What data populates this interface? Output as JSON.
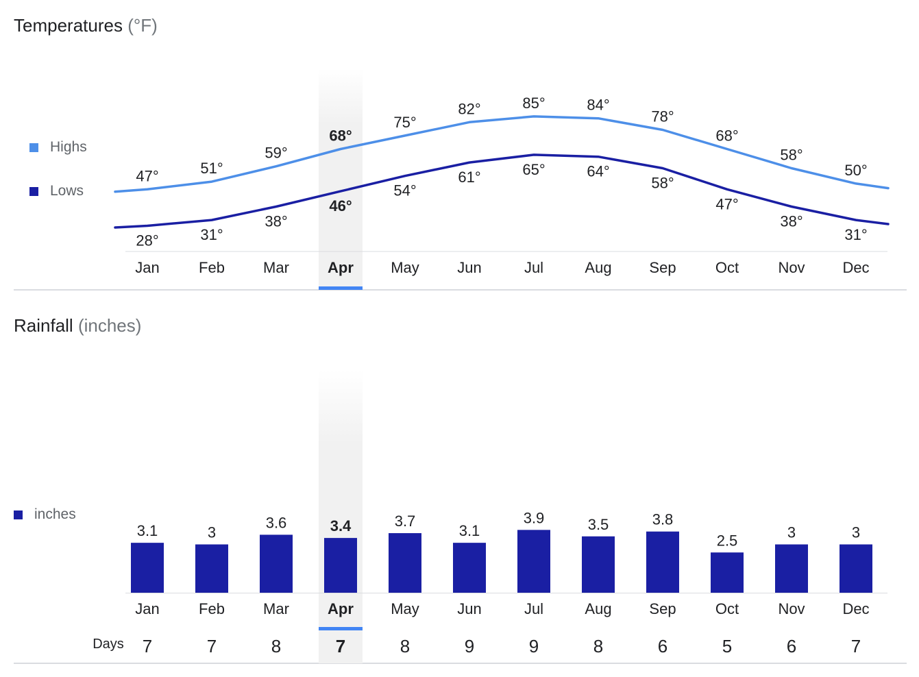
{
  "temperature": {
    "title": "Temperatures",
    "unit": "(°F)",
    "legend": {
      "highs": "Highs",
      "lows": "Lows"
    }
  },
  "rainfall": {
    "title": "Rainfall",
    "unit": "(inches)",
    "legend": "inches",
    "days_label": "Days"
  },
  "selected_month": "Apr",
  "colors": {
    "highs": "#4d8fe8",
    "lows": "#1a1fa3",
    "bars": "#1a1fa3",
    "highlight": "#f1f1f1",
    "selected_indicator": "#4285f4",
    "axis": "#dadce0"
  },
  "chart_data": [
    {
      "type": "line",
      "title": "Temperatures (°F)",
      "categories": [
        "Jan",
        "Feb",
        "Mar",
        "Apr",
        "May",
        "Jun",
        "Jul",
        "Aug",
        "Sep",
        "Oct",
        "Nov",
        "Dec"
      ],
      "series": [
        {
          "name": "Highs",
          "values": [
            47,
            51,
            59,
            68,
            75,
            82,
            85,
            84,
            78,
            68,
            58,
            50
          ],
          "labels": [
            "47°",
            "51°",
            "59°",
            "68°",
            "75°",
            "82°",
            "85°",
            "84°",
            "78°",
            "68°",
            "58°",
            "50°"
          ]
        },
        {
          "name": "Lows",
          "values": [
            28,
            31,
            38,
            46,
            54,
            61,
            65,
            64,
            58,
            47,
            38,
            31
          ],
          "labels": [
            "28°",
            "31°",
            "38°",
            "46°",
            "54°",
            "61°",
            "65°",
            "64°",
            "58°",
            "47°",
            "38°",
            "31°"
          ]
        }
      ],
      "legend": "left"
    },
    {
      "type": "bar",
      "title": "Rainfall (inches)",
      "categories": [
        "Jan",
        "Feb",
        "Mar",
        "Apr",
        "May",
        "Jun",
        "Jul",
        "Aug",
        "Sep",
        "Oct",
        "Nov",
        "Dec"
      ],
      "series": [
        {
          "name": "inches",
          "values": [
            3.1,
            3,
            3.6,
            3.4,
            3.7,
            3.1,
            3.9,
            3.5,
            3.8,
            2.5,
            3,
            3
          ],
          "labels": [
            "3.1",
            "3",
            "3.6",
            "3.4",
            "3.7",
            "3.1",
            "3.9",
            "3.5",
            "3.8",
            "2.5",
            "3",
            "3"
          ]
        }
      ],
      "days": [
        "7",
        "7",
        "8",
        "7",
        "8",
        "9",
        "9",
        "8",
        "6",
        "5",
        "6",
        "7"
      ],
      "legend": "left"
    }
  ]
}
